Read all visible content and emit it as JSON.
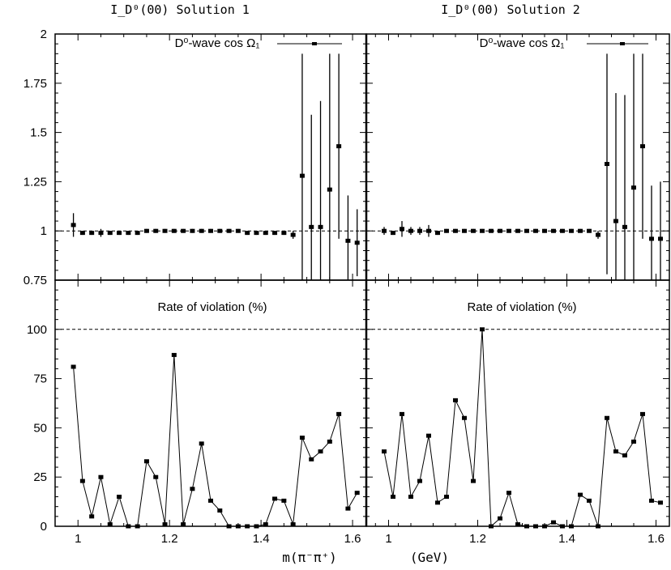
{
  "figure": {
    "xlabel": "m(π⁻π⁺)",
    "xunit": "(GeV)"
  },
  "chart_data": [
    {
      "type": "scatter",
      "panel": "top-left",
      "title": "I_D⁰(00)  Solution 1",
      "legend": "D⁰-wave  cos Ω₁",
      "legend_placement": "top-right",
      "xlim": [
        0.95,
        1.63
      ],
      "ylim": [
        0.75,
        2.0
      ],
      "yticks": [
        "0.75",
        "1",
        "1.25",
        "1.5",
        "1.75",
        "2"
      ],
      "reference_line": 1.0,
      "series": [
        {
          "x": [
            0.99,
            1.01,
            1.03,
            1.05,
            1.07,
            1.09,
            1.11,
            1.13,
            1.15,
            1.17,
            1.19,
            1.21,
            1.23,
            1.25,
            1.27,
            1.29,
            1.31,
            1.33,
            1.35,
            1.37,
            1.39,
            1.41,
            1.43,
            1.45,
            1.47,
            1.49,
            1.51,
            1.53,
            1.55,
            1.57,
            1.59,
            1.61
          ],
          "y": [
            1.03,
            0.99,
            0.99,
            0.99,
            0.99,
            0.99,
            0.99,
            0.99,
            1.0,
            1.0,
            1.0,
            1.0,
            1.0,
            1.0,
            1.0,
            1.0,
            1.0,
            1.0,
            1.0,
            0.99,
            0.99,
            0.99,
            0.99,
            0.99,
            0.98,
            1.28,
            1.02,
            1.02,
            1.21,
            1.43,
            0.95,
            0.94
          ],
          "err": [
            0.06,
            0.01,
            0.01,
            0.02,
            0.01,
            0.01,
            0.01,
            0.01,
            0.01,
            0.01,
            0.01,
            0.01,
            0.01,
            0.01,
            0.01,
            0.01,
            0.01,
            0.01,
            0.01,
            0.01,
            0.01,
            0.01,
            0.01,
            0.01,
            0.02,
            0.62,
            0.57,
            0.64,
            0.69,
            0.47,
            0.23,
            0.17
          ]
        }
      ]
    },
    {
      "type": "scatter",
      "panel": "top-right",
      "title": "I_D⁰(00)  Solution 2",
      "legend": "D⁰-wave  cos Ω₁",
      "legend_placement": "top-right",
      "xlim": [
        0.95,
        1.63
      ],
      "ylim": [
        0.75,
        2.0
      ],
      "reference_line": 1.0,
      "series": [
        {
          "x": [
            0.99,
            1.01,
            1.03,
            1.05,
            1.07,
            1.09,
            1.11,
            1.13,
            1.15,
            1.17,
            1.19,
            1.21,
            1.23,
            1.25,
            1.27,
            1.29,
            1.31,
            1.33,
            1.35,
            1.37,
            1.39,
            1.41,
            1.43,
            1.45,
            1.47,
            1.49,
            1.51,
            1.53,
            1.55,
            1.57,
            1.59,
            1.61
          ],
          "y": [
            1.0,
            0.99,
            1.01,
            1.0,
            1.0,
            1.0,
            0.99,
            1.0,
            1.0,
            1.0,
            1.0,
            1.0,
            1.0,
            1.0,
            1.0,
            1.0,
            1.0,
            1.0,
            1.0,
            1.0,
            1.0,
            1.0,
            1.0,
            1.0,
            0.98,
            1.34,
            1.05,
            1.02,
            1.22,
            1.43,
            0.96,
            0.96
          ],
          "err": [
            0.02,
            0.01,
            0.04,
            0.02,
            0.02,
            0.03,
            0.01,
            0.01,
            0.01,
            0.01,
            0.01,
            0.01,
            0.01,
            0.01,
            0.01,
            0.01,
            0.01,
            0.01,
            0.01,
            0.01,
            0.01,
            0.01,
            0.01,
            0.01,
            0.02,
            0.56,
            0.65,
            0.67,
            0.68,
            0.47,
            0.27,
            0.29
          ]
        }
      ]
    },
    {
      "type": "line",
      "panel": "bottom-left",
      "title": "Rate of violation (%)",
      "xlim": [
        0.95,
        1.63
      ],
      "ylim": [
        0,
        125
      ],
      "xticks": [
        "1",
        "1.2",
        "1.4",
        "1.6"
      ],
      "yticks": [
        "0",
        "25",
        "50",
        "75",
        "100"
      ],
      "reference_line": 100,
      "series": [
        {
          "x": [
            0.99,
            1.01,
            1.03,
            1.05,
            1.07,
            1.09,
            1.11,
            1.13,
            1.15,
            1.17,
            1.19,
            1.21,
            1.23,
            1.25,
            1.27,
            1.29,
            1.31,
            1.33,
            1.35,
            1.37,
            1.39,
            1.41,
            1.43,
            1.45,
            1.47,
            1.49,
            1.51,
            1.53,
            1.55,
            1.57,
            1.59,
            1.61
          ],
          "y": [
            81,
            23,
            5,
            25,
            1,
            15,
            0,
            0,
            33,
            25,
            1,
            87,
            1,
            19,
            42,
            13,
            8,
            0,
            0,
            0,
            0,
            1,
            14,
            13,
            1,
            45,
            34,
            38,
            43,
            57,
            9,
            17
          ]
        }
      ]
    },
    {
      "type": "line",
      "panel": "bottom-right",
      "title": "Rate of violation (%)",
      "xlim": [
        0.95,
        1.63
      ],
      "ylim": [
        0,
        125
      ],
      "xticks": [
        "1",
        "1.2",
        "1.4",
        "1.6"
      ],
      "reference_line": 100,
      "series": [
        {
          "x": [
            0.99,
            1.01,
            1.03,
            1.05,
            1.07,
            1.09,
            1.11,
            1.13,
            1.15,
            1.17,
            1.19,
            1.21,
            1.23,
            1.25,
            1.27,
            1.29,
            1.31,
            1.33,
            1.35,
            1.37,
            1.39,
            1.41,
            1.43,
            1.45,
            1.47,
            1.49,
            1.51,
            1.53,
            1.55,
            1.57,
            1.59,
            1.61
          ],
          "y": [
            38,
            15,
            57,
            15,
            23,
            46,
            12,
            15,
            64,
            55,
            23,
            100,
            0,
            4,
            17,
            1,
            0,
            0,
            0,
            2,
            0,
            0,
            16,
            13,
            0,
            55,
            38,
            36,
            43,
            57,
            13,
            12
          ]
        }
      ]
    }
  ]
}
